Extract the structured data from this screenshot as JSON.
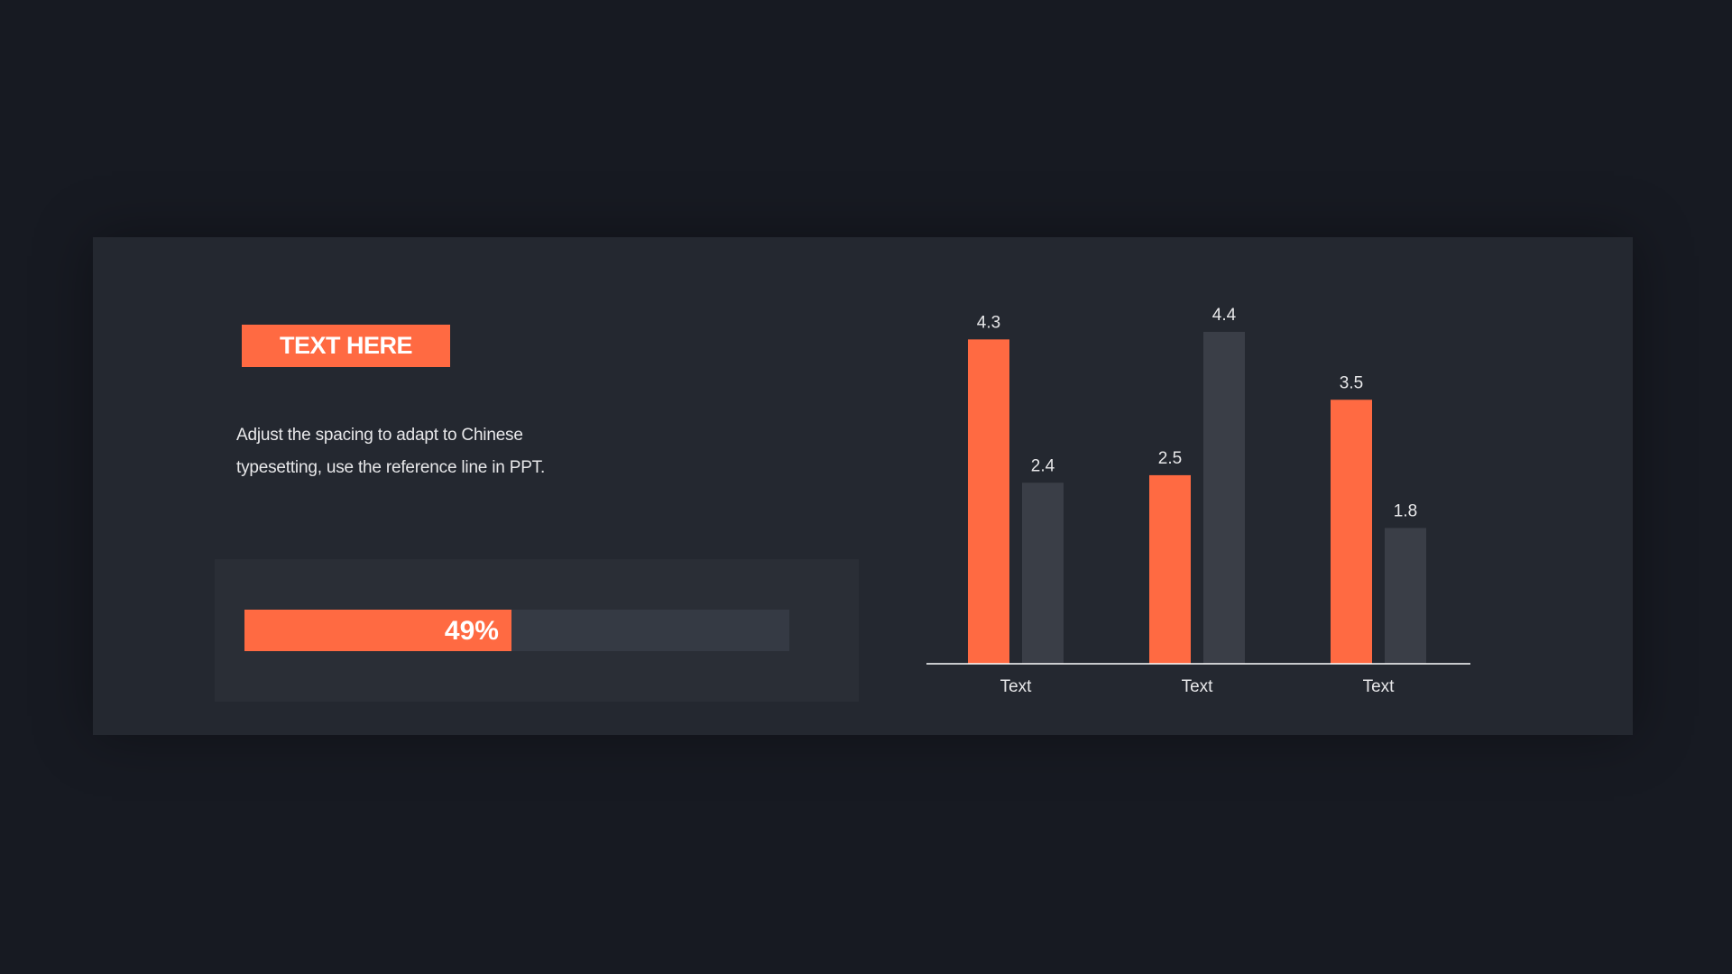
{
  "badge": {
    "title": "TEXT HERE"
  },
  "description": "Adjust the spacing to adapt to Chinese typesetting, use the reference line in PPT.",
  "progress": {
    "value": 49,
    "label": "49%"
  },
  "colors": {
    "accent": "#ff6a42",
    "secondary": "#3a3e47",
    "axis": "#ffffff",
    "label": "#e8e8ea"
  },
  "chart_data": {
    "type": "bar",
    "categories": [
      "Text",
      "Text",
      "Text"
    ],
    "series": [
      {
        "values": [
          4.3,
          2.5,
          3.5
        ]
      },
      {
        "values": [
          2.4,
          4.4,
          1.8
        ]
      }
    ],
    "ylim": [
      0,
      4.4
    ],
    "title": "",
    "xlabel": "",
    "ylabel": "",
    "grid": false,
    "legend": "none"
  }
}
